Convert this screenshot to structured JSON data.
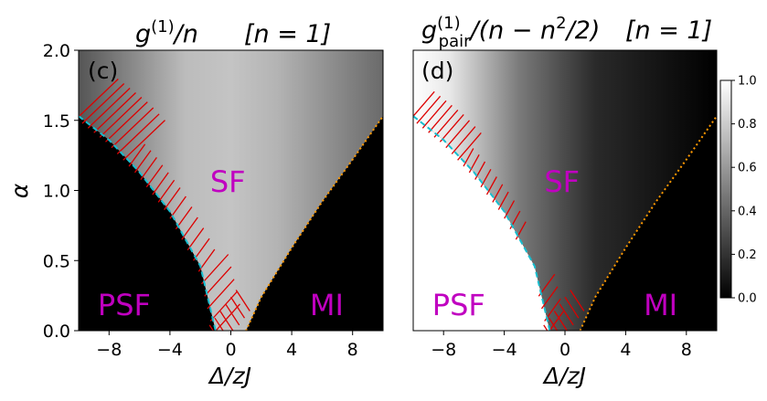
{
  "chart_data": [
    {
      "type": "heatmap",
      "panel": "(c)",
      "title": "g(1)/n   [n = 1]",
      "xlabel": "Δ/zJ",
      "ylabel": "α",
      "xlim": [
        -10,
        10
      ],
      "ylim": [
        0,
        2
      ],
      "xticks": [
        "−8",
        "−4",
        "0",
        "4",
        "8"
      ],
      "xtick_values": [
        -8,
        -4,
        0,
        4,
        8
      ],
      "yticks": [
        "0.0",
        "0.5",
        "1.0",
        "1.5",
        "2.0"
      ],
      "ytick_values": [
        0,
        0.5,
        1.0,
        1.5,
        2.0
      ],
      "regions": [
        {
          "label": "SF",
          "x": -0.2,
          "y": 0.99
        },
        {
          "label": "PSF",
          "x": -7,
          "y": 0.11
        },
        {
          "label": "MI",
          "x": 6.3,
          "y": 0.11
        }
      ],
      "boundaries": {
        "psf_sf_dashed": {
          "color": "#17becf",
          "points": [
            [
              -10,
              1.53
            ],
            [
              -8,
              1.36
            ],
            [
              -6,
              1.13
            ],
            [
              -4,
              0.85
            ],
            [
              -2,
              0.46
            ],
            [
              -1,
              0.0
            ]
          ]
        },
        "sf_mi_dotted": {
          "color": "#ff9900",
          "points": [
            [
              1,
              0.0
            ],
            [
              2,
              0.24
            ],
            [
              4,
              0.59
            ],
            [
              6,
              0.92
            ],
            [
              8,
              1.22
            ],
            [
              10,
              1.53
            ]
          ]
        }
      },
      "hatch_color": "#dd0000"
    },
    {
      "type": "heatmap",
      "panel": "(d)",
      "title": "g(1)pair/(n − n²/2)   [n = 1]",
      "xlabel": "Δ/zJ",
      "ylabel": "",
      "xlim": [
        -10,
        10
      ],
      "ylim": [
        0,
        2
      ],
      "xticks": [
        "−8",
        "−4",
        "0",
        "4",
        "8"
      ],
      "xtick_values": [
        -8,
        -4,
        0,
        4,
        8
      ],
      "regions": [
        {
          "label": "SF",
          "x": -0.2,
          "y": 0.99
        },
        {
          "label": "PSF",
          "x": -7,
          "y": 0.11
        },
        {
          "label": "MI",
          "x": 6.3,
          "y": 0.11
        }
      ],
      "colorbar": {
        "range": [
          0,
          1
        ],
        "ticks": [
          "0.0",
          "0.2",
          "0.4",
          "0.6",
          "0.8",
          "1.0"
        ],
        "tick_values": [
          0,
          0.2,
          0.4,
          0.6,
          0.8,
          1.0
        ]
      }
    }
  ],
  "titles": {
    "left_main": "g",
    "left_sup": "(1)",
    "left_rest": "/n",
    "left_bracket": "[n = 1]",
    "right_main": "g",
    "right_sup": "(1)",
    "right_sub": "pair",
    "right_rest": "/(n − n",
    "right_sup2": "2",
    "right_rest2": "/2)",
    "right_bracket": "[n = 1]"
  },
  "labels": {
    "panel_c": "(c)",
    "panel_d": "(d)",
    "xlabel": "Δ/zJ",
    "ylabel": "α"
  }
}
